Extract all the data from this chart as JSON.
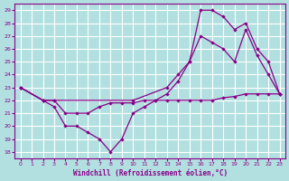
{
  "xlabel": "Windchill (Refroidissement éolien,°C)",
  "xlim": [
    -0.5,
    23.5
  ],
  "ylim": [
    17.5,
    29.5
  ],
  "yticks": [
    18,
    19,
    20,
    21,
    22,
    23,
    24,
    25,
    26,
    27,
    28,
    29
  ],
  "xticks": [
    0,
    1,
    2,
    3,
    4,
    5,
    6,
    7,
    8,
    9,
    10,
    11,
    12,
    13,
    14,
    15,
    16,
    17,
    18,
    19,
    20,
    21,
    22,
    23
  ],
  "bg_color": "#b2e0e0",
  "line_color": "#880088",
  "grid_color": "#ffffff",
  "line1_x": [
    0,
    2,
    3,
    10,
    13,
    14,
    15,
    16,
    17,
    18,
    19,
    20,
    21,
    22,
    23
  ],
  "line1_y": [
    23,
    22,
    22,
    22,
    23,
    24,
    25,
    29,
    29,
    28.5,
    27.5,
    28,
    26,
    25,
    22.5
  ],
  "line2_x": [
    0,
    2,
    3,
    4,
    5,
    6,
    7,
    8,
    9,
    10,
    11,
    12,
    13,
    14,
    15,
    16,
    17,
    18,
    19,
    20,
    21,
    22,
    23
  ],
  "line2_y": [
    23,
    22,
    22,
    21,
    21,
    21,
    21.5,
    21.8,
    21.8,
    21.8,
    22,
    22,
    22,
    22,
    22,
    22,
    22,
    22.2,
    22.3,
    22.5,
    22.5,
    22.5,
    22.5
  ],
  "line3_x": [
    0,
    2,
    3,
    4,
    5,
    6,
    7,
    8,
    9,
    10,
    11,
    12,
    13,
    14,
    15,
    16,
    17,
    18,
    19,
    20,
    21,
    22,
    23
  ],
  "line3_y": [
    23,
    22,
    21.5,
    20,
    20,
    19.5,
    19,
    18,
    19,
    21,
    21.5,
    22,
    22.5,
    23.5,
    25,
    27,
    26.5,
    26,
    25,
    27.5,
    25.5,
    24,
    22.5
  ]
}
